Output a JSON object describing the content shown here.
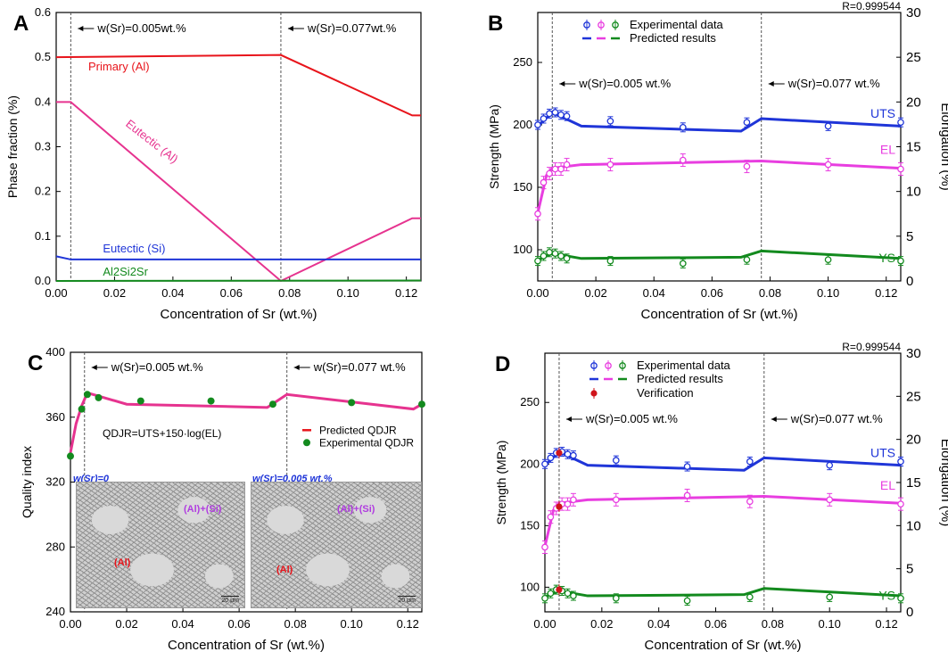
{
  "panels": [
    {
      "letter": "A",
      "xlabel": "Concentration of Sr (wt.%)",
      "ylabel": "Phase fraction (%)",
      "xlim": [
        0,
        0.125
      ],
      "ylim": [
        0,
        0.6
      ],
      "xticks": [
        "0.00",
        "0.02",
        "0.04",
        "0.06",
        "0.08",
        "0.10",
        "0.12"
      ],
      "yticks": [
        "0.0",
        "0.1",
        "0.2",
        "0.3",
        "0.4",
        "0.5",
        "0.6"
      ],
      "vlines": [
        0.005,
        0.077
      ],
      "vline_labels": [
        "w(Sr)=0.005wt.%",
        "w(Sr)=0.077wt.%"
      ],
      "series_labels": [
        "Primary (Al)",
        "Eutectic (Al)",
        "Eutectic (Si)",
        "Al2Si2Sr"
      ]
    },
    {
      "letter": "B",
      "xlabel": "Concentration of Sr (wt.%)",
      "ylabel": "Strength (MPa)",
      "y2label": "Elongation (%)",
      "corner": "R=0.999544",
      "xticks": [
        "0.00",
        "0.02",
        "0.04",
        "0.06",
        "0.08",
        "0.10",
        "0.12"
      ],
      "yticks": [
        "100",
        "150",
        "200",
        "250"
      ],
      "y2ticks": [
        "0",
        "5",
        "10",
        "15",
        "20",
        "25",
        "30"
      ],
      "vline_labels": [
        "w(Sr)=0.005 wt.%",
        "w(Sr)=0.077 wt.%"
      ],
      "legend": [
        "Experimental data",
        "Predicted results"
      ],
      "series_labels": [
        "UTS",
        "EL",
        "YS"
      ]
    },
    {
      "letter": "C",
      "xlabel": "Concentration of Sr (wt.%)",
      "ylabel": "Quality index",
      "xticks": [
        "0.00",
        "0.02",
        "0.04",
        "0.06",
        "0.08",
        "0.10",
        "0.12"
      ],
      "yticks": [
        "240",
        "280",
        "320",
        "360",
        "400"
      ],
      "vline_labels": [
        "w(Sr)=0.005 wt.%",
        "w(Sr)=0.077 wt.%"
      ],
      "equation": "QDJR=UTS+150·log(EL)",
      "legend": [
        "Predicted QDJR",
        "Experimental QDJR"
      ],
      "inset_titles": [
        "w(Sr)=0",
        "w(Sr)=0.005 wt.%"
      ],
      "inset_phase_al": "(Al)",
      "inset_phase_eut": "(Al)+(Si)",
      "inset_scale": "20 μm"
    },
    {
      "letter": "D",
      "xlabel": "Concentration of Sr (wt.%)",
      "ylabel": "Strength (MPa)",
      "y2label": "Elongation (%)",
      "corner": "R=0.999544",
      "xticks": [
        "0.00",
        "0.02",
        "0.04",
        "0.06",
        "0.08",
        "0.10",
        "0.12"
      ],
      "yticks": [
        "100",
        "150",
        "200",
        "250"
      ],
      "y2ticks": [
        "0",
        "5",
        "10",
        "15",
        "20",
        "25",
        "30"
      ],
      "vline_labels": [
        "w(Sr)=0.005 wt.%",
        "w(Sr)=0.077 wt.%"
      ],
      "legend": [
        "Experimental data",
        "Predicted results",
        "Verification"
      ],
      "series_labels": [
        "UTS",
        "EL",
        "YS"
      ]
    }
  ],
  "chart_data": [
    {
      "type": "line",
      "xlabel": "Concentration of Sr (wt.%)",
      "ylabel": "Phase fraction (%)",
      "xlim": [
        0,
        0.125
      ],
      "ylim": [
        0,
        0.6
      ],
      "series": [
        {
          "name": "Primary (Al)",
          "color": "#e8141b",
          "x": [
            0,
            0.077,
            0.122,
            0.125
          ],
          "y": [
            0.5,
            0.505,
            0.37,
            0.37
          ]
        },
        {
          "name": "Eutectic (Al)",
          "color": "#e6338f",
          "x": [
            0,
            0.005,
            0.077,
            0.122,
            0.125
          ],
          "y": [
            0.4,
            0.4,
            0.0,
            0.14,
            0.14
          ]
        },
        {
          "name": "Eutectic (Si)",
          "color": "#1f35d8",
          "x": [
            0,
            0.005,
            0.125
          ],
          "y": [
            0.055,
            0.048,
            0.048
          ]
        },
        {
          "name": "Al2Si2Sr",
          "color": "#138a1e",
          "x": [
            0,
            0.125
          ],
          "y": [
            0.0,
            0.001
          ]
        }
      ]
    },
    {
      "type": "line",
      "xlabel": "Concentration of Sr (wt.%)",
      "ylabel": "Strength (MPa)",
      "y2label": "Elongation (%)",
      "xlim": [
        0,
        0.125
      ],
      "ylim": [
        75,
        290
      ],
      "y2lim": [
        0,
        30
      ],
      "exp_x": [
        0,
        0.002,
        0.004,
        0.006,
        0.008,
        0.01,
        0.025,
        0.05,
        0.072,
        0.1,
        0.125
      ],
      "series": [
        {
          "name": "UTS",
          "axis": "left",
          "color": "#1f35d8",
          "pred_x": [
            0,
            0.005,
            0.015,
            0.07,
            0.077,
            0.125
          ],
          "pred_y": [
            199,
            210,
            199,
            195,
            205,
            199
          ],
          "exp_y": [
            200,
            205,
            209,
            210,
            208,
            207,
            203,
            198,
            202,
            199,
            202
          ]
        },
        {
          "name": "EL",
          "axis": "right",
          "color": "#e83ee0",
          "pred_x": [
            0,
            0.003,
            0.005,
            0.015,
            0.077,
            0.125
          ],
          "pred_y": [
            7.6,
            11.8,
            12.6,
            13.0,
            13.4,
            12.6
          ],
          "exp_y": [
            7.5,
            11.0,
            12.0,
            12.5,
            12.5,
            13.0,
            13.0,
            13.5,
            12.8,
            13.0,
            12.5
          ]
        },
        {
          "name": "YS",
          "axis": "left",
          "color": "#138a1e",
          "pred_x": [
            0,
            0.005,
            0.015,
            0.07,
            0.077,
            0.125
          ],
          "pred_y": [
            92,
            97,
            93,
            94,
            99,
            93
          ],
          "exp_y": [
            91,
            95,
            98,
            97,
            95,
            93,
            91,
            89,
            92,
            92,
            91
          ]
        }
      ]
    },
    {
      "type": "line",
      "xlabel": "Concentration of Sr (wt.%)",
      "ylabel": "Quality index",
      "xlim": [
        0,
        0.125
      ],
      "ylim": [
        240,
        400
      ],
      "series": [
        {
          "name": "Predicted QDJR",
          "color": "#e6338f",
          "x": [
            0,
            0.002,
            0.004,
            0.006,
            0.02,
            0.07,
            0.077,
            0.122,
            0.125
          ],
          "y": [
            338,
            356,
            367,
            375,
            368,
            366,
            374,
            365,
            368
          ]
        },
        {
          "name": "Experimental QDJR",
          "color": "#138a1e",
          "x": [
            0,
            0.004,
            0.006,
            0.01,
            0.025,
            0.05,
            0.072,
            0.1,
            0.125
          ],
          "y": [
            336,
            365,
            374,
            372,
            370,
            370,
            368,
            369,
            368
          ]
        }
      ]
    },
    {
      "type": "line",
      "xlabel": "Concentration of Sr (wt.%)",
      "ylabel": "Strength (MPa)",
      "y2label": "Elongation (%)",
      "xlim": [
        0,
        0.125
      ],
      "ylim": [
        80,
        290
      ],
      "y2lim": [
        0,
        30
      ],
      "verification": {
        "x": 0.005,
        "UTS": 209,
        "EL": 12.2,
        "YS": 98
      },
      "series": [
        {
          "name": "UTS",
          "axis": "left",
          "color": "#1f35d8",
          "pred_x": [
            0,
            0.005,
            0.015,
            0.07,
            0.077,
            0.125
          ],
          "pred_y": [
            199,
            210,
            199,
            195,
            205,
            199
          ],
          "exp_y": [
            200,
            205,
            209,
            210,
            208,
            207,
            203,
            198,
            202,
            199,
            202
          ]
        },
        {
          "name": "EL",
          "axis": "right",
          "color": "#e83ee0",
          "pred_x": [
            0,
            0.003,
            0.005,
            0.015,
            0.077,
            0.125
          ],
          "pred_y": [
            7.6,
            11.8,
            12.6,
            13.0,
            13.4,
            12.6
          ],
          "exp_y": [
            7.5,
            11.0,
            12.0,
            12.5,
            12.5,
            13.0,
            13.0,
            13.5,
            12.8,
            13.0,
            12.5
          ]
        },
        {
          "name": "YS",
          "axis": "left",
          "color": "#138a1e",
          "pred_x": [
            0,
            0.005,
            0.015,
            0.07,
            0.077,
            0.125
          ],
          "pred_y": [
            92,
            97,
            93,
            94,
            99,
            93
          ],
          "exp_y": [
            91,
            95,
            98,
            97,
            95,
            93,
            91,
            89,
            92,
            92,
            91
          ]
        }
      ],
      "exp_x": [
        0,
        0.002,
        0.004,
        0.006,
        0.008,
        0.01,
        0.025,
        0.05,
        0.072,
        0.1,
        0.125
      ]
    }
  ]
}
